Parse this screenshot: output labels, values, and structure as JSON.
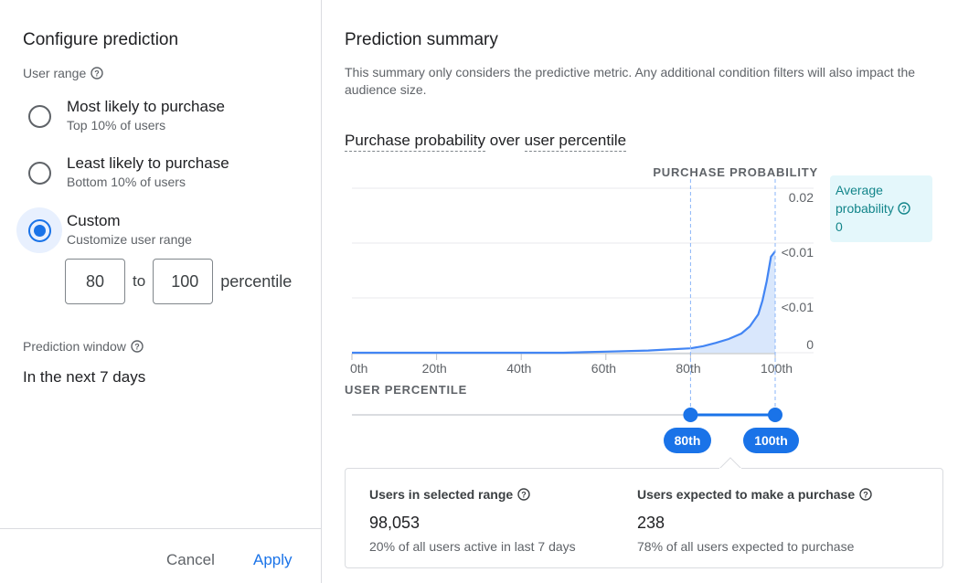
{
  "left": {
    "title": "Configure prediction",
    "user_range_label": "User range",
    "options": [
      {
        "title": "Most likely to purchase",
        "sub": "Top 10% of users",
        "selected": false
      },
      {
        "title": "Least likely to purchase",
        "sub": "Bottom 10% of users",
        "selected": false
      },
      {
        "title": "Custom",
        "sub": "Customize user range",
        "selected": true
      }
    ],
    "range": {
      "from": "80",
      "to_label": "to",
      "to": "100",
      "unit": "percentile"
    },
    "window_label": "Prediction window",
    "window_value": "In the next 7 days",
    "cancel": "Cancel",
    "apply": "Apply"
  },
  "right": {
    "title": "Prediction summary",
    "description": "This summary only considers the predictive metric. Any additional condition filters will also impact the audience size.",
    "chart_title_a": "Purchase probability",
    "chart_title_mid": "over",
    "chart_title_b": "user percentile",
    "avg_label": "Average probability",
    "avg_value": "0",
    "slider_low": "80th",
    "slider_high": "100th",
    "stats": [
      {
        "label": "Users in selected range",
        "value": "98,053",
        "sub": "20% of all users active in last 7 days"
      },
      {
        "label": "Users expected to make a purchase",
        "value": "238",
        "sub": "78% of all users expected to purchase"
      }
    ]
  },
  "colors": {
    "accent": "#1a73e8",
    "teal": "#12858a",
    "avg_bg": "#e4f7fb"
  },
  "chart_data": {
    "type": "area",
    "ylabel": "PURCHASE PROBABILITY",
    "xlabel": "USER PERCENTILE",
    "x_ticks": [
      "0th",
      "20th",
      "40th",
      "60th",
      "80th",
      "100th"
    ],
    "y_ticks": [
      "0.02",
      "<0.01",
      "<0.01",
      "0"
    ],
    "x": [
      0,
      10,
      20,
      30,
      40,
      50,
      55,
      60,
      65,
      70,
      75,
      80,
      83,
      86,
      89,
      92,
      94,
      96,
      97,
      98,
      99,
      100
    ],
    "y": [
      0,
      0,
      0,
      0,
      0,
      0,
      0.0001,
      0.0002,
      0.0003,
      0.0004,
      0.0006,
      0.0008,
      0.0012,
      0.0018,
      0.0025,
      0.0035,
      0.0048,
      0.007,
      0.0095,
      0.013,
      0.0175,
      0.0185
    ],
    "xlim": [
      0,
      100
    ],
    "ylim": [
      0,
      0.03
    ],
    "selection": [
      80,
      100
    ]
  }
}
